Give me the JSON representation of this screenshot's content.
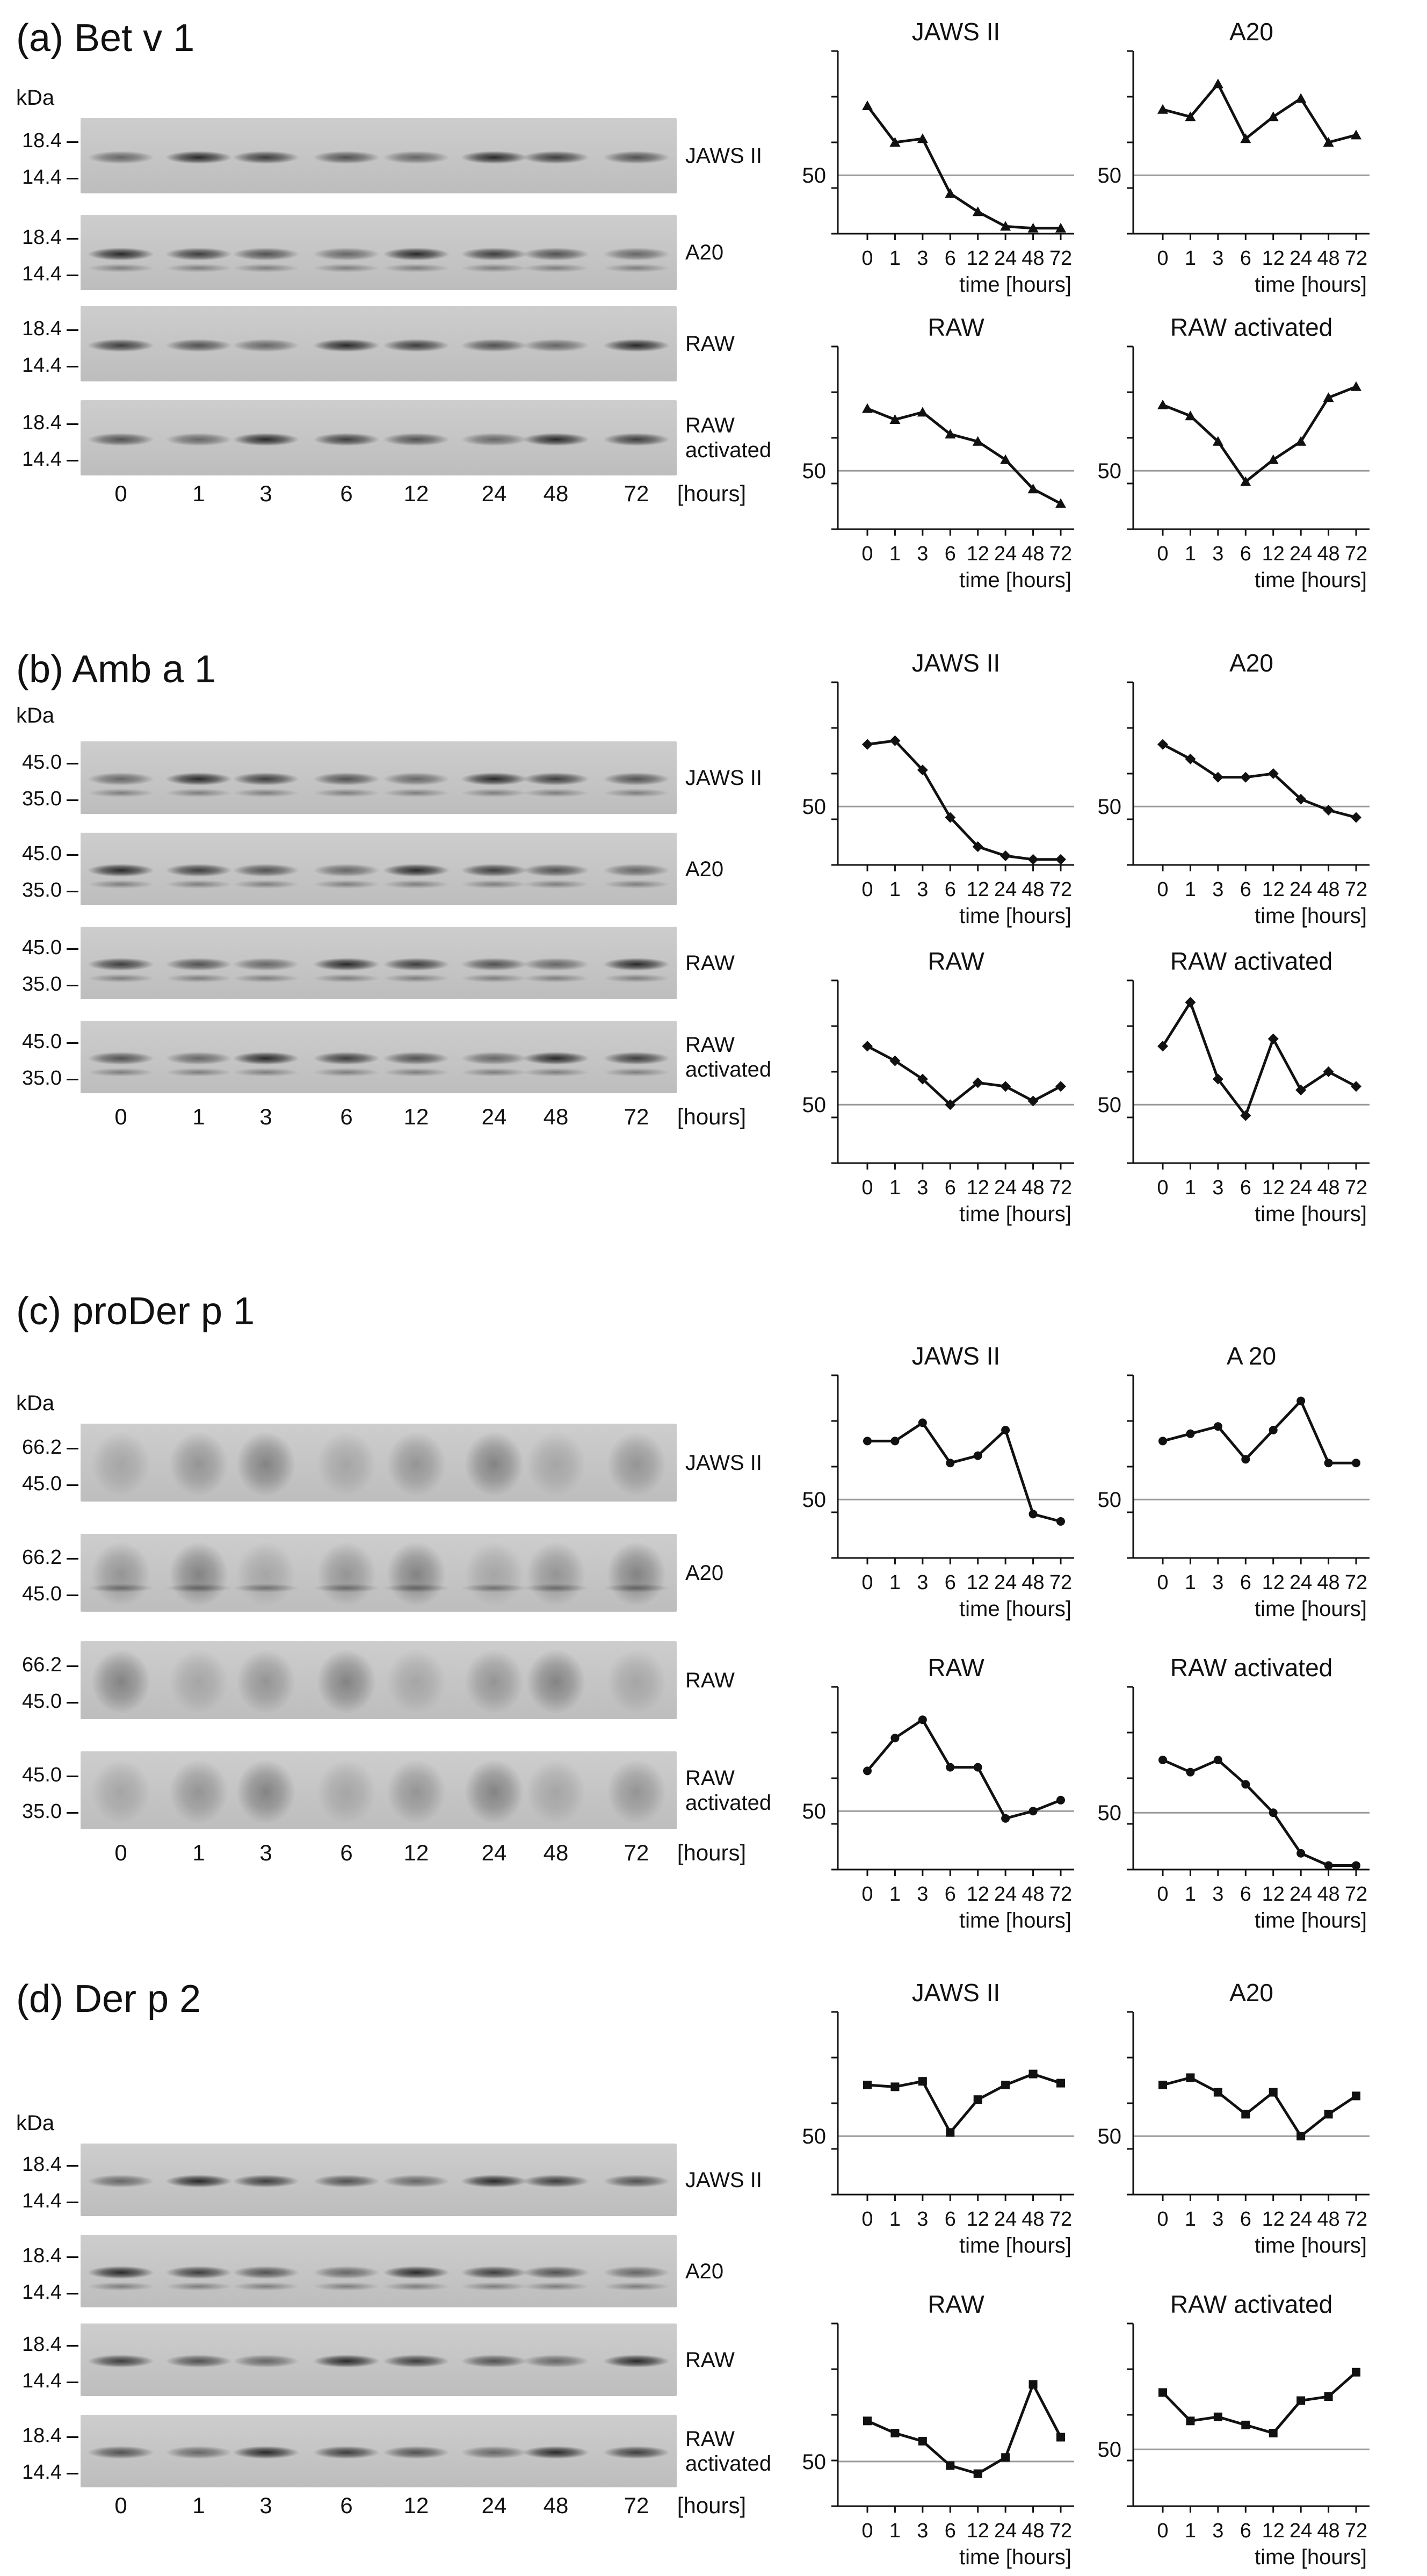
{
  "panels": [
    {
      "label": "(a) Bet v 1",
      "kda_label": "kDa",
      "mw_markers": [
        [
          "18.4",
          "14.4"
        ],
        [
          "18.4",
          "14.4"
        ],
        [
          "18.4",
          "14.4"
        ],
        [
          "18.4",
          "14.4"
        ]
      ],
      "cell_lines": [
        "JAWS II",
        "A20",
        "RAW",
        "RAW activated"
      ],
      "lanes": [
        "0",
        "1",
        "3",
        "6",
        "12",
        "24",
        "48",
        "72"
      ],
      "lane_unit": "[hours]"
    },
    {
      "label": "(b) Amb a 1",
      "kda_label": "kDa",
      "mw_markers": [
        [
          "45.0",
          "35.0"
        ],
        [
          "45.0",
          "35.0"
        ],
        [
          "45.0",
          "35.0"
        ],
        [
          "45.0",
          "35.0"
        ]
      ],
      "cell_lines": [
        "JAWS II",
        "A20",
        "RAW",
        "RAW activated"
      ],
      "lanes": [
        "0",
        "1",
        "3",
        "6",
        "12",
        "24",
        "48",
        "72"
      ],
      "lane_unit": "[hours]"
    },
    {
      "label": "(c) proDer p 1",
      "kda_label": "kDa",
      "mw_markers": [
        [
          "66.2",
          "45.0"
        ],
        [
          "66.2",
          "45.0"
        ],
        [
          "66.2",
          "45.0"
        ],
        [
          "45.0",
          "35.0"
        ]
      ],
      "cell_lines": [
        "JAWS II",
        "A20",
        "RAW",
        "RAW activated"
      ],
      "lanes": [
        "0",
        "1",
        "3",
        "6",
        "12",
        "24",
        "48",
        "72"
      ],
      "lane_unit": "[hours]"
    },
    {
      "label": "(d) Der p 2",
      "kda_label": "kDa",
      "mw_markers": [
        [
          "18.4",
          "14.4"
        ],
        [
          "18.4",
          "14.4"
        ],
        [
          "18.4",
          "14.4"
        ],
        [
          "18.4",
          "14.4"
        ]
      ],
      "cell_lines": [
        "JAWS II",
        "A20",
        "RAW",
        "RAW activated"
      ],
      "lanes": [
        "0",
        "1",
        "3",
        "6",
        "12",
        "24",
        "48",
        "72"
      ],
      "lane_unit": "[hours]"
    }
  ],
  "chart_data": [
    {
      "panel": "(a) Bet v 1",
      "title": "JAWS II",
      "type": "line",
      "marker": "triangle",
      "x": [
        "0",
        "1",
        "3",
        "6",
        "12",
        "24",
        "48",
        "72"
      ],
      "y": [
        69,
        59,
        60,
        45,
        40,
        36,
        35.5,
        35.5
      ],
      "ylim": [
        34,
        84
      ],
      "reference_y": 50,
      "y_ticks": [
        "50"
      ],
      "xlabel": "time [hours]"
    },
    {
      "panel": "(a) Bet v 1",
      "title": "A20",
      "type": "line",
      "marker": "triangle",
      "x": [
        "0",
        "1",
        "3",
        "6",
        "12",
        "24",
        "48",
        "72"
      ],
      "y": [
        68,
        66,
        75,
        60,
        66,
        71,
        59,
        61
      ],
      "ylim": [
        34,
        84
      ],
      "reference_y": 50,
      "y_ticks": [
        "50"
      ],
      "xlabel": "time [hours]"
    },
    {
      "panel": "(a) Bet v 1",
      "title": "RAW",
      "type": "line",
      "marker": "triangle",
      "x": [
        "0",
        "1",
        "3",
        "6",
        "12",
        "24",
        "48",
        "72"
      ],
      "y": [
        67,
        64,
        66,
        60,
        58,
        53,
        45,
        41
      ],
      "ylim": [
        34,
        84
      ],
      "reference_y": 50,
      "y_ticks": [
        "50"
      ],
      "xlabel": "time [hours]"
    },
    {
      "panel": "(a) Bet v 1",
      "title": "RAW activated",
      "type": "line",
      "marker": "triangle",
      "x": [
        "0",
        "1",
        "3",
        "6",
        "12",
        "24",
        "48",
        "72"
      ],
      "y": [
        68,
        65,
        58,
        47,
        53,
        58,
        70,
        73
      ],
      "ylim": [
        34,
        84
      ],
      "reference_y": 50,
      "y_ticks": [
        "50"
      ],
      "xlabel": "time [hours]"
    },
    {
      "panel": "(b) Amb a 1",
      "title": "JAWS II",
      "type": "line",
      "marker": "diamond",
      "x": [
        "0",
        "1",
        "3",
        "6",
        "12",
        "24",
        "48",
        "72"
      ],
      "y": [
        67,
        68,
        60,
        47,
        39,
        36.5,
        35.5,
        35.5
      ],
      "ylim": [
        34,
        84
      ],
      "reference_y": 50,
      "y_ticks": [
        "50"
      ],
      "xlabel": "time [hours]"
    },
    {
      "panel": "(b) Amb a 1",
      "title": "A20",
      "type": "line",
      "marker": "diamond",
      "x": [
        "0",
        "1",
        "3",
        "6",
        "12",
        "24",
        "48",
        "72"
      ],
      "y": [
        67,
        63,
        58,
        58,
        59,
        52,
        49,
        47
      ],
      "ylim": [
        34,
        84
      ],
      "reference_y": 50,
      "y_ticks": [
        "50"
      ],
      "xlabel": "time [hours]"
    },
    {
      "panel": "(b) Amb a 1",
      "title": "RAW",
      "type": "line",
      "marker": "diamond",
      "x": [
        "0",
        "1",
        "3",
        "6",
        "12",
        "24",
        "48",
        "72"
      ],
      "y": [
        66,
        62,
        57,
        50,
        56,
        55,
        51,
        55
      ],
      "ylim": [
        34,
        84
      ],
      "reference_y": 50,
      "y_ticks": [
        "50"
      ],
      "xlabel": "time [hours]"
    },
    {
      "panel": "(b) Amb a 1",
      "title": "RAW activated",
      "type": "line",
      "marker": "diamond",
      "x": [
        "0",
        "1",
        "3",
        "6",
        "12",
        "24",
        "48",
        "72"
      ],
      "y": [
        66,
        78,
        57,
        47,
        68,
        54,
        59,
        55
      ],
      "ylim": [
        34,
        84
      ],
      "reference_y": 50,
      "y_ticks": [
        "50"
      ],
      "xlabel": "time [hours]"
    },
    {
      "panel": "(c) proDer p 1",
      "title": "JAWS II",
      "type": "line",
      "marker": "circle",
      "x": [
        "0",
        "1",
        "3",
        "6",
        "12",
        "24",
        "48",
        "72"
      ],
      "y": [
        66,
        66,
        71,
        60,
        62,
        69,
        46,
        44
      ],
      "ylim": [
        34,
        84
      ],
      "reference_y": 50,
      "y_ticks": [
        "50"
      ],
      "xlabel": "time [hours]"
    },
    {
      "panel": "(c) proDer p 1",
      "title": "A 20",
      "type": "line",
      "marker": "circle",
      "x": [
        "0",
        "1",
        "3",
        "6",
        "12",
        "24",
        "48",
        "72"
      ],
      "y": [
        66,
        68,
        70,
        61,
        69,
        77,
        60,
        60
      ],
      "ylim": [
        34,
        84
      ],
      "reference_y": 50,
      "y_ticks": [
        "50"
      ],
      "xlabel": "time [hours]"
    },
    {
      "panel": "(c) proDer p 1",
      "title": "RAW",
      "type": "line",
      "marker": "circle",
      "x": [
        "0",
        "1",
        "3",
        "6",
        "12",
        "24",
        "48",
        "72"
      ],
      "y": [
        61,
        70,
        75,
        62,
        62,
        48,
        50,
        53
      ],
      "ylim": [
        34,
        84
      ],
      "reference_y": 50,
      "y_ticks": [
        "50"
      ],
      "xlabel": "time [hours]"
    },
    {
      "panel": "(c) proDer p 1",
      "title": "RAW activated",
      "type": "line",
      "marker": "circle",
      "x": [
        "0",
        "1",
        "3",
        "6",
        "12",
        "24",
        "48",
        "72"
      ],
      "y": [
        66,
        63,
        66,
        60,
        53,
        43,
        40,
        40
      ],
      "ylim": [
        39,
        84
      ],
      "reference_y": 53,
      "y_ticks": [
        "50"
      ],
      "xlabel": "time [hours]"
    },
    {
      "panel": "(d) Der p 2",
      "title": "JAWS II",
      "type": "line",
      "marker": "square",
      "x": [
        "0",
        "1",
        "3",
        "6",
        "12",
        "24",
        "48",
        "72"
      ],
      "y": [
        64,
        63.5,
        65,
        51,
        60,
        64,
        67,
        64.5
      ],
      "ylim": [
        34,
        84
      ],
      "reference_y": 50,
      "y_ticks": [
        "50"
      ],
      "xlabel": "time [hours]"
    },
    {
      "panel": "(d) Der p 2",
      "title": "A20",
      "type": "line",
      "marker": "square",
      "x": [
        "0",
        "1",
        "3",
        "6",
        "12",
        "24",
        "48",
        "72"
      ],
      "y": [
        64,
        66,
        62,
        56,
        62,
        50,
        56,
        61
      ],
      "ylim": [
        34,
        84
      ],
      "reference_y": 50,
      "y_ticks": [
        "50"
      ],
      "xlabel": "time [hours]"
    },
    {
      "panel": "(d) Der p 2",
      "title": "RAW",
      "type": "line",
      "marker": "square",
      "x": [
        "0",
        "1",
        "3",
        "6",
        "12",
        "24",
        "48",
        "72"
      ],
      "y": [
        60,
        57,
        55,
        49,
        47,
        51,
        69,
        56
      ],
      "ylim": [
        39,
        84
      ],
      "reference_y": 50,
      "y_ticks": [
        "50"
      ],
      "xlabel": "time [hours]"
    },
    {
      "panel": "(d) Der p 2",
      "title": "RAW activated",
      "type": "line",
      "marker": "square",
      "x": [
        "0",
        "1",
        "3",
        "6",
        "12",
        "24",
        "48",
        "72"
      ],
      "y": [
        67,
        60,
        61,
        59,
        57,
        65,
        66,
        72
      ],
      "ylim": [
        39,
        84
      ],
      "reference_y": 53,
      "y_ticks": [
        "50"
      ],
      "xlabel": "time [hours]"
    }
  ],
  "colors": {
    "line": "#111111",
    "reference_line": "#9a9a9a",
    "blot_bg": "#c9c9c9",
    "band": "#1e1e1e"
  }
}
